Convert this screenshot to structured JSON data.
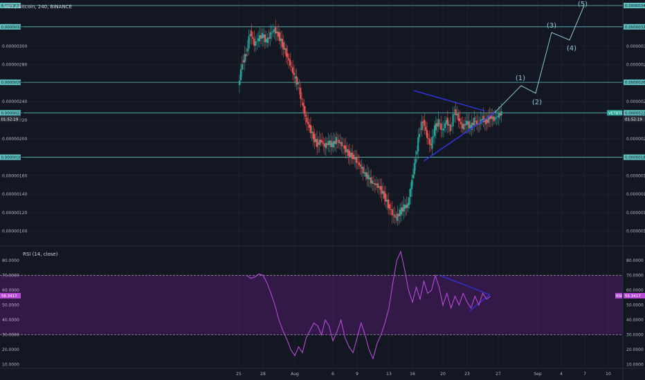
{
  "chart_data": {
    "type": "candlestick",
    "title": "VET / Bitcoin, 240, BINANCE",
    "x_ticks": [
      "25",
      "28",
      "Aug",
      "6",
      "9",
      "13",
      "16",
      "20",
      "23",
      "27",
      "Sep",
      "4",
      "7",
      "10"
    ],
    "price_axis": {
      "ylim": [
        9.6e-07,
        3.44e-06
      ],
      "tick_labels": [
        "0.00000100",
        "0.00000120",
        "0.00000140",
        "0.00000160",
        "0.00000180",
        "0.00000200",
        "0.00000220",
        "0.00000240",
        "0.00000261",
        "0.00000280",
        "0.00000300",
        "0.00000321",
        "0.00000344"
      ]
    },
    "horizontal_levels": [
      {
        "label": "0.00000344",
        "value": 3.44e-06
      },
      {
        "label": "0.00000321",
        "value": 3.21e-06
      },
      {
        "label": "0.00000261",
        "value": 2.61e-06
      },
      {
        "label": "0.00000228",
        "value": 2.28e-06
      },
      {
        "label": "0.00000180",
        "value": 1.8e-06
      }
    ],
    "current_price": {
      "label": "0.00000228",
      "countdown": "01:52:19",
      "tag": "VETBTC",
      "value": 2.28e-06
    },
    "elliott_waves": [
      "(1)",
      "(2)",
      "(3)",
      "(4)",
      "(5)"
    ],
    "price_series": [
      {
        "t": 25.0,
        "p": 2.56
      },
      {
        "t": 25.5,
        "p": 2.82
      },
      {
        "t": 26.0,
        "p": 2.92
      },
      {
        "t": 26.5,
        "p": 3.16
      },
      {
        "t": 27.0,
        "p": 3.02
      },
      {
        "t": 27.5,
        "p": 3.08
      },
      {
        "t": 28.0,
        "p": 3.12
      },
      {
        "t": 28.5,
        "p": 3.05
      },
      {
        "t": 29.0,
        "p": 3.13
      },
      {
        "t": 29.5,
        "p": 3.18
      },
      {
        "t": 30.0,
        "p": 3.12
      },
      {
        "t": 30.5,
        "p": 3.02
      },
      {
        "t": 31.0,
        "p": 2.92
      },
      {
        "t": 31.5,
        "p": 2.8
      },
      {
        "t": 32.0,
        "p": 2.68
      },
      {
        "t": 32.5,
        "p": 2.58
      },
      {
        "t": 33.0,
        "p": 2.4
      },
      {
        "t": 33.5,
        "p": 2.22
      },
      {
        "t": 34.0,
        "p": 2.12
      },
      {
        "t": 34.5,
        "p": 2.02
      },
      {
        "t": 35.0,
        "p": 1.94
      },
      {
        "t": 35.5,
        "p": 1.98
      },
      {
        "t": 36.0,
        "p": 1.92
      },
      {
        "t": 36.5,
        "p": 1.96
      },
      {
        "t": 37.0,
        "p": 1.93
      },
      {
        "t": 37.5,
        "p": 1.99
      },
      {
        "t": 38.0,
        "p": 1.95
      },
      {
        "t": 38.5,
        "p": 1.9
      },
      {
        "t": 39.0,
        "p": 1.84
      },
      {
        "t": 39.5,
        "p": 1.81
      },
      {
        "t": 40.0,
        "p": 1.76
      },
      {
        "t": 40.5,
        "p": 1.7
      },
      {
        "t": 41.0,
        "p": 1.62
      },
      {
        "t": 41.5,
        "p": 1.58
      },
      {
        "t": 42.0,
        "p": 1.52
      },
      {
        "t": 42.5,
        "p": 1.5
      },
      {
        "t": 43.0,
        "p": 1.46
      },
      {
        "t": 43.5,
        "p": 1.38
      },
      {
        "t": 44.0,
        "p": 1.28
      },
      {
        "t": 44.5,
        "p": 1.19
      },
      {
        "t": 45.0,
        "p": 1.14
      },
      {
        "t": 45.5,
        "p": 1.21
      },
      {
        "t": 46.0,
        "p": 1.26
      },
      {
        "t": 46.5,
        "p": 1.28
      },
      {
        "t": 47.0,
        "p": 1.55
      },
      {
        "t": 47.5,
        "p": 1.8
      },
      {
        "t": 48.0,
        "p": 2.08
      },
      {
        "t": 48.5,
        "p": 2.2
      },
      {
        "t": 49.0,
        "p": 2.02
      },
      {
        "t": 49.5,
        "p": 1.92
      },
      {
        "t": 50.0,
        "p": 2.12
      },
      {
        "t": 50.5,
        "p": 2.18
      },
      {
        "t": 51.0,
        "p": 2.08
      },
      {
        "t": 51.5,
        "p": 2.2
      },
      {
        "t": 52.0,
        "p": 2.1
      },
      {
        "t": 52.5,
        "p": 2.3
      },
      {
        "t": 53.0,
        "p": 2.22
      },
      {
        "t": 53.5,
        "p": 2.12
      },
      {
        "t": 54.0,
        "p": 2.18
      },
      {
        "t": 54.5,
        "p": 2.12
      },
      {
        "t": 55.0,
        "p": 2.2
      },
      {
        "t": 55.5,
        "p": 2.15
      },
      {
        "t": 56.0,
        "p": 2.22
      },
      {
        "t": 56.5,
        "p": 2.18
      },
      {
        "t": 57.0,
        "p": 2.24
      },
      {
        "t": 57.5,
        "p": 2.21
      },
      {
        "t": 58.0,
        "p": 2.25
      },
      {
        "t": 58.5,
        "p": 2.28
      }
    ],
    "indicator": {
      "name": "RSI (14, close)",
      "ylim": [
        8,
        87
      ],
      "tick_labels": [
        "10.0000",
        "20.0000",
        "30.0000",
        "40.0000",
        "50.0000",
        "60.0000",
        "70.0000",
        "80.0000"
      ],
      "bands": [
        70,
        30
      ],
      "current_label": "56.3417",
      "tag": "RSI",
      "value": 56.3417,
      "series": [
        {
          "t": 26.0,
          "v": 70
        },
        {
          "t": 26.5,
          "v": 68
        },
        {
          "t": 27.0,
          "v": 69
        },
        {
          "t": 27.5,
          "v": 71
        },
        {
          "t": 28.0,
          "v": 70
        },
        {
          "t": 28.5,
          "v": 65
        },
        {
          "t": 29.0,
          "v": 58
        },
        {
          "t": 29.5,
          "v": 50
        },
        {
          "t": 30.0,
          "v": 40
        },
        {
          "t": 30.5,
          "v": 33
        },
        {
          "t": 31.0,
          "v": 27
        },
        {
          "t": 31.5,
          "v": 20
        },
        {
          "t": 32.0,
          "v": 16
        },
        {
          "t": 32.5,
          "v": 22
        },
        {
          "t": 33.0,
          "v": 18
        },
        {
          "t": 33.5,
          "v": 28
        },
        {
          "t": 34.0,
          "v": 33
        },
        {
          "t": 34.5,
          "v": 38
        },
        {
          "t": 35.0,
          "v": 36
        },
        {
          "t": 35.5,
          "v": 30
        },
        {
          "t": 36.0,
          "v": 40
        },
        {
          "t": 36.5,
          "v": 36
        },
        {
          "t": 37.0,
          "v": 26
        },
        {
          "t": 37.5,
          "v": 32
        },
        {
          "t": 38.0,
          "v": 40
        },
        {
          "t": 38.5,
          "v": 28
        },
        {
          "t": 39.0,
          "v": 22
        },
        {
          "t": 39.5,
          "v": 18
        },
        {
          "t": 40.0,
          "v": 28
        },
        {
          "t": 40.5,
          "v": 38
        },
        {
          "t": 41.0,
          "v": 30
        },
        {
          "t": 41.5,
          "v": 20
        },
        {
          "t": 42.0,
          "v": 14
        },
        {
          "t": 42.5,
          "v": 24
        },
        {
          "t": 43.0,
          "v": 30
        },
        {
          "t": 43.5,
          "v": 38
        },
        {
          "t": 44.0,
          "v": 48
        },
        {
          "t": 44.5,
          "v": 65
        },
        {
          "t": 45.0,
          "v": 80
        },
        {
          "t": 45.5,
          "v": 86
        },
        {
          "t": 46.0,
          "v": 74
        },
        {
          "t": 46.5,
          "v": 60
        },
        {
          "t": 47.0,
          "v": 52
        },
        {
          "t": 47.5,
          "v": 62
        },
        {
          "t": 48.0,
          "v": 54
        },
        {
          "t": 48.5,
          "v": 66
        },
        {
          "t": 49.0,
          "v": 58
        },
        {
          "t": 49.5,
          "v": 60
        },
        {
          "t": 50.0,
          "v": 70
        },
        {
          "t": 50.5,
          "v": 62
        },
        {
          "t": 51.0,
          "v": 50
        },
        {
          "t": 51.5,
          "v": 58
        },
        {
          "t": 52.0,
          "v": 48
        },
        {
          "t": 52.5,
          "v": 56
        },
        {
          "t": 53.0,
          "v": 50
        },
        {
          "t": 53.5,
          "v": 58
        },
        {
          "t": 54.0,
          "v": 52
        },
        {
          "t": 54.5,
          "v": 48
        },
        {
          "t": 55.0,
          "v": 56
        },
        {
          "t": 55.5,
          "v": 50
        },
        {
          "t": 56.0,
          "v": 58
        },
        {
          "t": 56.5,
          "v": 54
        },
        {
          "t": 57.0,
          "v": 56
        }
      ]
    }
  },
  "colors": {
    "background": "#131722",
    "up": "#26a69a",
    "down": "#ef5350",
    "rsi": "#b74bd6",
    "trendline": "#2f35e6",
    "level": "#5fbfc0",
    "rsi_band_fill": "#3a1a4f"
  }
}
